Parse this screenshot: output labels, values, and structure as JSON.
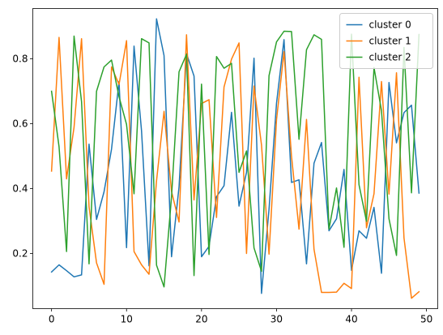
{
  "chart_data": {
    "type": "line",
    "title": "",
    "xlabel": "",
    "ylabel": "",
    "xlim": [
      -2.5,
      51.5
    ],
    "ylim": [
      0.03,
      0.955
    ],
    "xticks": [
      0,
      10,
      20,
      30,
      40,
      50
    ],
    "yticks": [
      0.2,
      0.4,
      0.6,
      0.8
    ],
    "xtick_labels": [
      "0",
      "10",
      "20",
      "30",
      "40",
      "50"
    ],
    "ytick_labels": [
      "0.2",
      "0.4",
      "0.6",
      "0.8"
    ],
    "grid": false,
    "legend": "top-right",
    "x": [
      0,
      1,
      2,
      3,
      4,
      5,
      6,
      7,
      8,
      9,
      10,
      11,
      12,
      13,
      14,
      15,
      16,
      17,
      18,
      19,
      20,
      21,
      22,
      23,
      24,
      25,
      26,
      27,
      28,
      29,
      30,
      31,
      32,
      33,
      34,
      35,
      36,
      37,
      38,
      39,
      40,
      41,
      42,
      43,
      44,
      45,
      46,
      47,
      48,
      49
    ],
    "series": [
      {
        "name": "cluster 0",
        "color": "#1f77b4",
        "values": [
          0.143,
          0.165,
          0.147,
          0.128,
          0.134,
          0.537,
          0.305,
          0.39,
          0.522,
          0.73,
          0.218,
          0.839,
          0.578,
          0.162,
          0.923,
          0.81,
          0.19,
          0.405,
          0.816,
          0.747,
          0.19,
          0.222,
          0.375,
          0.409,
          0.635,
          0.346,
          0.45,
          0.802,
          0.077,
          0.336,
          0.663,
          0.859,
          0.419,
          0.427,
          0.168,
          0.478,
          0.542,
          0.27,
          0.307,
          0.459,
          0.148,
          0.27,
          0.247,
          0.342,
          0.139,
          0.727,
          0.541,
          0.634,
          0.657,
          0.386
        ]
      },
      {
        "name": "cluster 1",
        "color": "#ff7f0e",
        "values": [
          0.454,
          0.866,
          0.43,
          0.589,
          0.862,
          0.344,
          0.171,
          0.105,
          0.775,
          0.721,
          0.856,
          0.206,
          0.165,
          0.136,
          0.424,
          0.638,
          0.391,
          0.297,
          0.874,
          0.365,
          0.662,
          0.674,
          0.311,
          0.713,
          0.799,
          0.849,
          0.2,
          0.716,
          0.534,
          0.198,
          0.612,
          0.822,
          0.5,
          0.275,
          0.613,
          0.213,
          0.08,
          0.08,
          0.081,
          0.108,
          0.092,
          0.743,
          0.279,
          0.384,
          0.73,
          0.383,
          0.757,
          0.248,
          0.062,
          0.082
        ]
      },
      {
        "name": "cluster 2",
        "color": "#2ca02c",
        "values": [
          0.7,
          0.529,
          0.206,
          0.87,
          0.668,
          0.168,
          0.7,
          0.775,
          0.796,
          0.683,
          0.598,
          0.384,
          0.862,
          0.849,
          0.164,
          0.097,
          0.375,
          0.76,
          0.814,
          0.132,
          0.722,
          0.197,
          0.807,
          0.771,
          0.786,
          0.45,
          0.516,
          0.217,
          0.145,
          0.748,
          0.852,
          0.885,
          0.884,
          0.552,
          0.828,
          0.874,
          0.86,
          0.275,
          0.402,
          0.219,
          0.876,
          0.412,
          0.299,
          0.773,
          0.64,
          0.307,
          0.194,
          0.835,
          0.387,
          0.875
        ]
      }
    ]
  }
}
